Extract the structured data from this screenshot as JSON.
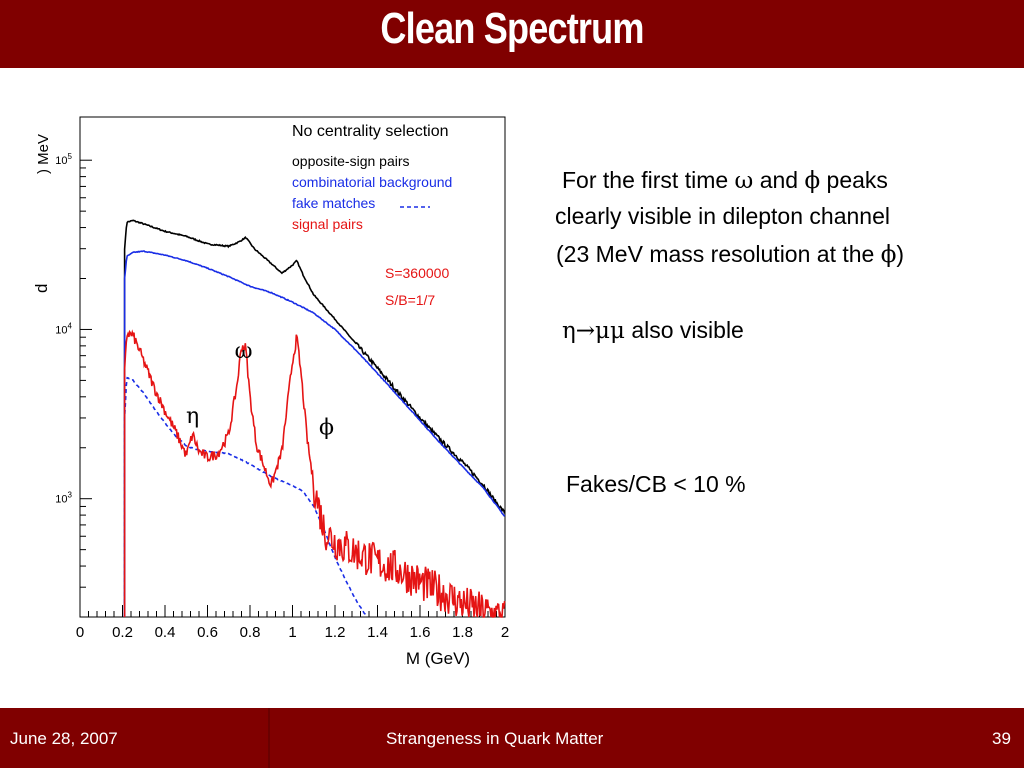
{
  "slide": {
    "title": "Clean Spectrum",
    "bullets": {
      "b1_l1a": "For the first time ",
      "b1_omega": "ω",
      "b1_l1b": " and ",
      "b1_phi": "ϕ",
      "b1_l1c": " peaks",
      "b1_l2": "clearly visible in dilepton channel",
      "b1_l3a": "(23 MeV mass resolution at the ",
      "b1_l3phi": "ϕ",
      "b1_l3b": ")",
      "b2_sym": "η→μμ",
      "b2_text": " also visible",
      "b3": "Fakes/CB < 10 %"
    },
    "footer": {
      "date": "June 28, 2007",
      "conference": "Strangeness in Quark Matter",
      "page": "39"
    }
  },
  "colors": {
    "bar": "#800000",
    "opposite_sign": "#000000",
    "combinatorial": "#1a2ee6",
    "fake": "#1a2ee6",
    "signal": "#e51414"
  },
  "chart_data": {
    "type": "line",
    "title": "No centrality selection",
    "xlabel": "M (GeV)",
    "ylabel_partial": "d",
    "ylabel_unit_partial": ") MeV",
    "xlim": [
      0,
      2
    ],
    "ylog": true,
    "ylim": [
      200,
      180000
    ],
    "xticks": [
      "0",
      "0.2",
      "0.4",
      "0.6",
      "0.8",
      "1",
      "1.2",
      "1.4",
      "1.6",
      "1.8",
      "2"
    ],
    "yticks": [
      {
        "v": 1000,
        "base": "10",
        "exp": "3"
      },
      {
        "v": 10000,
        "base": "10",
        "exp": "4"
      },
      {
        "v": 100000,
        "base": "10",
        "exp": "5"
      }
    ],
    "legend": [
      {
        "label": "opposite-sign pairs",
        "color": "#000000",
        "style": "solid"
      },
      {
        "label": "combinatorial background",
        "color": "#1a2ee6",
        "style": "solid"
      },
      {
        "label": "fake matches",
        "color": "#1a2ee6",
        "style": "dashed"
      },
      {
        "label": "signal pairs",
        "color": "#e51414",
        "style": "solid"
      }
    ],
    "stats": [
      "S=360000",
      "S/B=1/7"
    ],
    "annotations": [
      {
        "text": "ω",
        "x": 0.77,
        "y": 6800
      },
      {
        "text": "η",
        "x": 0.53,
        "y": 2800
      },
      {
        "text": "ϕ",
        "x": 1.16,
        "y": 2400
      }
    ],
    "series": [
      {
        "name": "opposite-sign pairs",
        "color": "#000000",
        "style": "solid",
        "x": [
          0.21,
          0.22,
          0.25,
          0.3,
          0.4,
          0.5,
          0.6,
          0.7,
          0.75,
          0.78,
          0.82,
          0.9,
          0.95,
          1.0,
          1.02,
          1.05,
          1.1,
          1.2,
          1.3,
          1.4,
          1.5,
          1.6,
          1.7,
          1.8,
          1.9,
          1.95,
          2.0
        ],
        "y": [
          30000,
          43000,
          44000,
          42000,
          38000,
          35500,
          32000,
          31000,
          33000,
          35000,
          30000,
          24500,
          21500,
          24000,
          25500,
          21000,
          16000,
          11500,
          8200,
          5900,
          4200,
          3000,
          2200,
          1650,
          1200,
          980,
          820
        ]
      },
      {
        "name": "combinatorial background",
        "color": "#1a2ee6",
        "style": "solid",
        "x": [
          0.21,
          0.22,
          0.25,
          0.3,
          0.4,
          0.5,
          0.6,
          0.7,
          0.8,
          0.9,
          1.0,
          1.1,
          1.2,
          1.3,
          1.4,
          1.5,
          1.6,
          1.7,
          1.8,
          1.9,
          1.95,
          2.0
        ],
        "y": [
          20000,
          27000,
          28500,
          29000,
          27500,
          25500,
          23000,
          20500,
          18000,
          16500,
          14500,
          12500,
          10000,
          7500,
          5500,
          4000,
          2900,
          2100,
          1550,
          1150,
          950,
          780
        ]
      },
      {
        "name": "fake matches",
        "color": "#1a2ee6",
        "style": "dashed",
        "x": [
          0.21,
          0.22,
          0.25,
          0.3,
          0.35,
          0.4,
          0.45,
          0.5,
          0.55,
          0.6,
          0.7,
          0.8,
          0.9,
          1.0,
          1.05,
          1.1,
          1.15,
          1.2,
          1.25,
          1.3,
          1.35
        ],
        "y": [
          3000,
          5200,
          5000,
          4200,
          3400,
          2800,
          2350,
          2050,
          1950,
          1900,
          1850,
          1600,
          1350,
          1200,
          1100,
          900,
          650,
          450,
          330,
          250,
          200
        ]
      },
      {
        "name": "signal pairs",
        "color": "#e51414",
        "style": "solid",
        "x": [
          0.21,
          0.22,
          0.25,
          0.28,
          0.3,
          0.35,
          0.4,
          0.45,
          0.5,
          0.53,
          0.56,
          0.6,
          0.65,
          0.7,
          0.74,
          0.76,
          0.78,
          0.8,
          0.83,
          0.87,
          0.9,
          0.95,
          1.0,
          1.02,
          1.04,
          1.07,
          1.1,
          1.15,
          1.2,
          1.3,
          1.4,
          1.5,
          1.6,
          1.7,
          1.8,
          1.9,
          2.0
        ],
        "y": [
          5500,
          9500,
          9200,
          7500,
          6500,
          4500,
          3300,
          2500,
          1800,
          2400,
          1900,
          1750,
          1850,
          2400,
          4800,
          8000,
          7800,
          4000,
          2100,
          1500,
          1200,
          1900,
          6500,
          9000,
          5500,
          2200,
          1200,
          650,
          560,
          480,
          420,
          380,
          320,
          280,
          240,
          215,
          200
        ]
      }
    ]
  }
}
